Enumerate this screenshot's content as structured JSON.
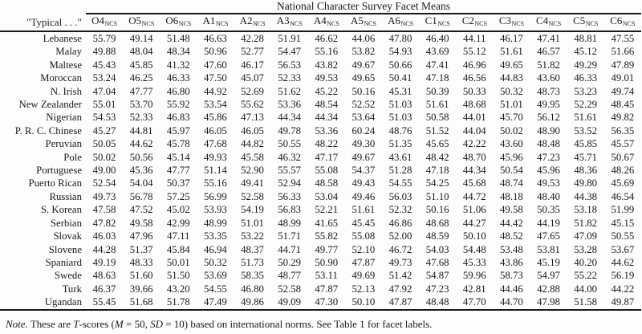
{
  "table": {
    "title": "National Character Survey Facet Means",
    "row_label_header": "\"Typical . . .\"",
    "columns": [
      {
        "facet": "O4",
        "sub": "NCS"
      },
      {
        "facet": "O5",
        "sub": "NCS"
      },
      {
        "facet": "O6",
        "sub": "NCS"
      },
      {
        "facet": "A1",
        "sub": "NCS"
      },
      {
        "facet": "A2",
        "sub": "NCS"
      },
      {
        "facet": "A3",
        "sub": "NCS"
      },
      {
        "facet": "A4",
        "sub": "NCS"
      },
      {
        "facet": "A5",
        "sub": "NCS"
      },
      {
        "facet": "A6",
        "sub": "NCS"
      },
      {
        "facet": "C1",
        "sub": "NCS"
      },
      {
        "facet": "C2",
        "sub": "NCS"
      },
      {
        "facet": "C3",
        "sub": "NCS"
      },
      {
        "facet": "C4",
        "sub": "NCS"
      },
      {
        "facet": "C5",
        "sub": "NCS"
      },
      {
        "facet": "C6",
        "sub": "NCS"
      }
    ],
    "rows": [
      {
        "label": "Lebanese",
        "values": [
          "55.79",
          "49.14",
          "51.48",
          "46.63",
          "42.28",
          "51.91",
          "46.62",
          "44.06",
          "47.80",
          "46.40",
          "44.11",
          "46.17",
          "47.41",
          "48.81",
          "47.55"
        ]
      },
      {
        "label": "Malay",
        "values": [
          "49.88",
          "48.04",
          "48.34",
          "50.96",
          "52.77",
          "54.47",
          "55.16",
          "53.82",
          "54.93",
          "43.69",
          "55.12",
          "51.61",
          "46.57",
          "45.12",
          "51.66"
        ]
      },
      {
        "label": "Maltese",
        "values": [
          "45.43",
          "45.85",
          "41.32",
          "47.60",
          "46.17",
          "56.53",
          "43.82",
          "49.67",
          "50.66",
          "47.41",
          "46.96",
          "49.65",
          "51.82",
          "49.29",
          "47.89"
        ]
      },
      {
        "label": "Moroccan",
        "values": [
          "53.24",
          "46.25",
          "46.33",
          "47.50",
          "45.07",
          "52.33",
          "49.53",
          "49.65",
          "50.41",
          "47.18",
          "46.56",
          "44.83",
          "43.60",
          "46.33",
          "49.01"
        ]
      },
      {
        "label": "N. Irish",
        "values": [
          "47.04",
          "47.77",
          "46.80",
          "44.92",
          "52.69",
          "51.62",
          "45.22",
          "50.16",
          "45.31",
          "50.39",
          "50.33",
          "50.32",
          "48.73",
          "53.23",
          "49.74"
        ]
      },
      {
        "label": "New Zealander",
        "values": [
          "55.01",
          "53.70",
          "55.92",
          "53.54",
          "55.62",
          "53.36",
          "48.54",
          "52.52",
          "51.03",
          "51.61",
          "48.68",
          "51.01",
          "49.95",
          "52.29",
          "48.45"
        ]
      },
      {
        "label": "Nigerian",
        "values": [
          "54.53",
          "52.33",
          "46.83",
          "45.86",
          "47.13",
          "44.34",
          "44.34",
          "53.64",
          "51.03",
          "50.58",
          "44.01",
          "45.70",
          "56.12",
          "51.61",
          "49.82"
        ]
      },
      {
        "label": "P. R. C. Chinese",
        "values": [
          "45.27",
          "44.81",
          "45.97",
          "46.05",
          "46.05",
          "49.78",
          "53.36",
          "60.24",
          "48.76",
          "51.52",
          "44.04",
          "50.02",
          "48.90",
          "53.52",
          "56.35"
        ]
      },
      {
        "label": "Peruvian",
        "values": [
          "50.05",
          "44.62",
          "45.78",
          "47.68",
          "44.82",
          "50.55",
          "48.22",
          "49.30",
          "51.35",
          "45.65",
          "42.22",
          "43.60",
          "48.48",
          "45.85",
          "45.57"
        ]
      },
      {
        "label": "Pole",
        "values": [
          "50.02",
          "50.56",
          "45.14",
          "49.93",
          "45.58",
          "46.32",
          "47.17",
          "49.67",
          "43.61",
          "48.42",
          "48.70",
          "45.96",
          "47.23",
          "45.71",
          "50.67"
        ]
      },
      {
        "label": "Portuguese",
        "values": [
          "49.00",
          "45.36",
          "47.77",
          "51.14",
          "52.90",
          "55.57",
          "55.08",
          "54.37",
          "51.28",
          "47.18",
          "44.34",
          "50.54",
          "45.96",
          "48.36",
          "48.26"
        ]
      },
      {
        "label": "Puerto Rican",
        "values": [
          "52.54",
          "54.04",
          "50.37",
          "55.16",
          "49.41",
          "52.94",
          "48.58",
          "49.43",
          "54.55",
          "54.25",
          "45.68",
          "48.74",
          "49.53",
          "49.80",
          "45.69"
        ]
      },
      {
        "label": "Russian",
        "values": [
          "49.73",
          "56.78",
          "57.25",
          "56.99",
          "52.58",
          "56.33",
          "53.04",
          "49.46",
          "56.03",
          "51.10",
          "44.72",
          "48.18",
          "48.40",
          "44.38",
          "46.54"
        ]
      },
      {
        "label": "S. Korean",
        "values": [
          "47.58",
          "47.52",
          "45.02",
          "53.93",
          "54.19",
          "56.83",
          "52.21",
          "51.61",
          "52.32",
          "50.16",
          "51.06",
          "49.58",
          "50.35",
          "53.18",
          "51.99"
        ]
      },
      {
        "label": "Serbian",
        "values": [
          "47.82",
          "49.58",
          "42.99",
          "48.99",
          "51.01",
          "48.99",
          "41.65",
          "45.45",
          "46.86",
          "48.68",
          "44.27",
          "44.42",
          "44.19",
          "51.82",
          "45.15"
        ]
      },
      {
        "label": "Slovak",
        "values": [
          "46.03",
          "47.96",
          "47.11",
          "53.35",
          "53.22",
          "51.71",
          "55.82",
          "55.08",
          "52.00",
          "48.59",
          "50.10",
          "48.52",
          "47.65",
          "47.09",
          "50.55"
        ]
      },
      {
        "label": "Slovene",
        "values": [
          "44.28",
          "51.37",
          "45.84",
          "46.94",
          "48.37",
          "44.71",
          "49.77",
          "52.10",
          "46.72",
          "54.03",
          "54.48",
          "53.48",
          "53.81",
          "53.28",
          "53.67"
        ]
      },
      {
        "label": "Spaniard",
        "values": [
          "49.19",
          "48.33",
          "50.01",
          "50.32",
          "51.73",
          "50.29",
          "50.90",
          "47.87",
          "49.73",
          "47.68",
          "45.33",
          "43.86",
          "45.19",
          "40.20",
          "44.62"
        ]
      },
      {
        "label": "Swede",
        "values": [
          "48.63",
          "51.60",
          "51.50",
          "53.69",
          "58.35",
          "48.77",
          "53.11",
          "49.69",
          "51.42",
          "54.87",
          "59.96",
          "58.73",
          "54.97",
          "55.22",
          "56.19"
        ]
      },
      {
        "label": "Turk",
        "values": [
          "46.37",
          "39.66",
          "43.20",
          "54.55",
          "46.80",
          "52.58",
          "47.87",
          "52.13",
          "47.92",
          "47.23",
          "42.81",
          "44.46",
          "42.88",
          "44.00",
          "44.22"
        ]
      },
      {
        "label": "Ugandan",
        "values": [
          "55.45",
          "51.68",
          "51.78",
          "47.49",
          "49.86",
          "49.09",
          "47.30",
          "50.10",
          "47.87",
          "48.48",
          "47.70",
          "44.70",
          "47.98",
          "51.58",
          "49.87"
        ]
      }
    ]
  },
  "note": {
    "segments": [
      {
        "text": "Note.",
        "italic": true
      },
      {
        "text": " These are ",
        "italic": false
      },
      {
        "text": "T",
        "italic": true
      },
      {
        "text": "-scores (",
        "italic": false
      },
      {
        "text": "M",
        "italic": true
      },
      {
        "text": " = 50, ",
        "italic": false
      },
      {
        "text": "SD",
        "italic": true
      },
      {
        "text": " = 10) based on international norms. See Table 1 for facet labels.",
        "italic": false
      }
    ]
  },
  "colors": {
    "background": "#fdfdfb",
    "text": "#1a1a1a",
    "rule": "#1a1a1a"
  }
}
